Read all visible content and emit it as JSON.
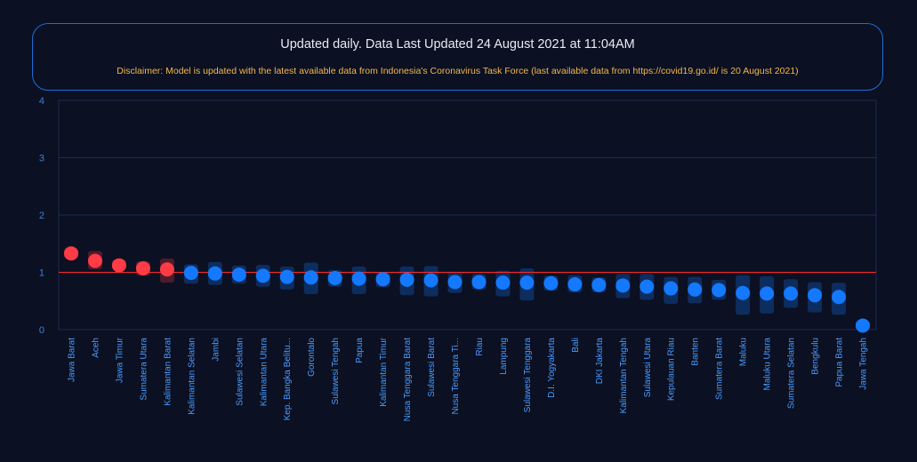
{
  "header": {
    "title": "Updated daily. Data Last Updated 24 August 2021 at 11:04AM",
    "disclaimer": "Disclaimer: Model is updated with the latest available data from Indonesia's Coronavirus Task Force (last available data from https://covid19.go.id/ is 20 August 2021)"
  },
  "colors": {
    "background": "#0b1022",
    "border": "#1f6fd6",
    "above_threshold": "#ff3b45",
    "below_threshold": "#1479ff",
    "threshold_line": "#ff2a2a",
    "disclaimer": "#f3b84a"
  },
  "chart_data": {
    "type": "scatter",
    "ylim": [
      0,
      4
    ],
    "yticks": [
      0,
      1,
      2,
      3,
      4
    ],
    "threshold": 1,
    "grid": true,
    "categories": [
      "Jawa Barat",
      "Aceh",
      "Jawa Timur",
      "Sumatera Utara",
      "Kalimantan Barat",
      "Kalimantan Selatan",
      "Jambi",
      "Sulawesi Selatan",
      "Kalimantan Utara",
      "Kep. Bangka Belitu...",
      "Gorontalo",
      "Sulawesi Tengah",
      "Papua",
      "Kalimantan Timur",
      "Nusa Tenggara Barat",
      "Sulawesi Barat",
      "Nusa Tenggara Ti...",
      "Riau",
      "Lampung",
      "Sulawesi Tenggara",
      "D.I. Yogyakarta",
      "Bali",
      "DKI Jakarta",
      "Kalimantan Tengah",
      "Sulawesi Utara",
      "Kepulauan Riau",
      "Banten",
      "Sumatera Barat",
      "Maluku",
      "Maluku Utara",
      "Sumatera Selatan",
      "Bengkulu",
      "Papua Barat",
      "Jawa Tengah"
    ],
    "values": [
      1.33,
      1.2,
      1.12,
      1.07,
      1.05,
      0.99,
      0.98,
      0.96,
      0.94,
      0.92,
      0.91,
      0.9,
      0.89,
      0.88,
      0.87,
      0.86,
      0.83,
      0.83,
      0.82,
      0.82,
      0.81,
      0.79,
      0.78,
      0.77,
      0.75,
      0.72,
      0.7,
      0.69,
      0.64,
      0.63,
      0.63,
      0.6,
      0.57,
      0.07
    ],
    "lower": [
      1.24,
      1.05,
      1.04,
      0.94,
      0.82,
      0.8,
      0.78,
      0.8,
      0.75,
      0.7,
      0.62,
      0.75,
      0.62,
      0.74,
      0.6,
      0.58,
      0.64,
      0.7,
      0.58,
      0.51,
      0.68,
      0.65,
      0.65,
      0.55,
      0.52,
      0.45,
      0.46,
      0.52,
      0.26,
      0.28,
      0.38,
      0.3,
      0.26,
      0.0
    ],
    "upper": [
      1.42,
      1.37,
      1.22,
      1.19,
      1.24,
      1.14,
      1.18,
      1.12,
      1.13,
      1.1,
      1.17,
      1.04,
      1.1,
      1.0,
      1.1,
      1.11,
      1.01,
      0.97,
      1.03,
      1.07,
      0.94,
      0.95,
      0.91,
      0.97,
      0.97,
      0.92,
      0.92,
      0.87,
      0.95,
      0.93,
      0.88,
      0.83,
      0.82,
      0.16
    ]
  }
}
